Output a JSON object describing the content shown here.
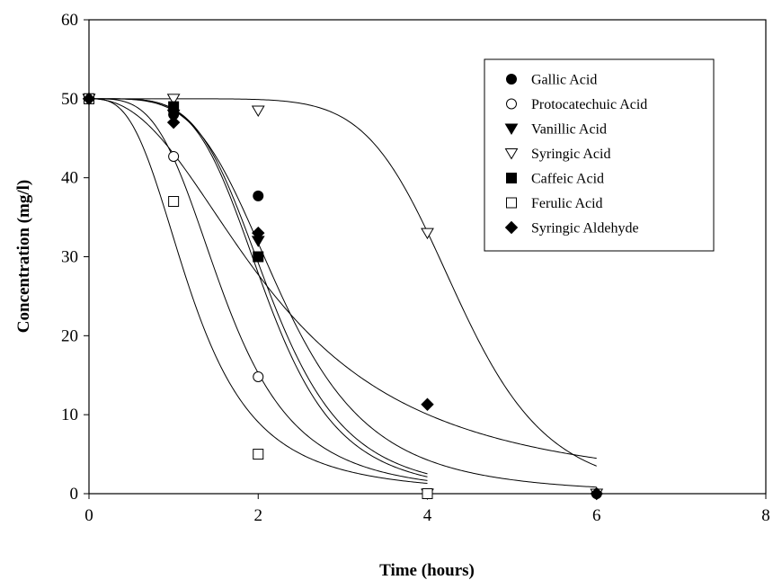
{
  "chart_data": {
    "type": "scatter",
    "title": "",
    "xlabel": "Time (hours)",
    "ylabel": "Concentration (mg/l)",
    "xlim": [
      0,
      8
    ],
    "ylim": [
      0,
      60
    ],
    "xticks": [
      "0",
      "2",
      "4",
      "6",
      "8"
    ],
    "yticks": [
      "0",
      "10",
      "20",
      "30",
      "40",
      "50",
      "60"
    ],
    "grid": false,
    "legend_position": "top-right",
    "fitted_curves": true,
    "series": [
      {
        "name": "Gallic Acid",
        "marker": "filled-circle",
        "points": [
          [
            0,
            50
          ],
          [
            1,
            48
          ],
          [
            2,
            37.7
          ],
          [
            4,
            0
          ],
          [
            6,
            0
          ]
        ],
        "fit": {
          "x0": 2.28,
          "k": 1.85
        }
      },
      {
        "name": "Protocatechuic Acid",
        "marker": "open-circle",
        "points": [
          [
            0,
            50
          ],
          [
            1,
            42.7
          ],
          [
            2,
            14.8
          ],
          [
            4,
            0
          ]
        ],
        "fit": {
          "x0": 1.6,
          "k": 2.3
        }
      },
      {
        "name": "Vanillic Acid",
        "marker": "filled-triangle-down",
        "points": [
          [
            0,
            50
          ],
          [
            1,
            48
          ],
          [
            2,
            32
          ],
          [
            4,
            0
          ]
        ],
        "fit": {
          "x0": 2.15,
          "k": 2.2
        }
      },
      {
        "name": "Syringic Acid",
        "marker": "open-triangle-down",
        "points": [
          [
            0,
            50
          ],
          [
            1,
            50
          ],
          [
            2,
            48.5
          ],
          [
            4,
            33
          ],
          [
            6,
            0
          ]
        ],
        "fit": {
          "x0": 4.35,
          "k": 1.85
        }
      },
      {
        "name": "Caffeic Acid",
        "marker": "filled-square",
        "points": [
          [
            0,
            50
          ],
          [
            1,
            49
          ],
          [
            2,
            30
          ],
          [
            4,
            0
          ]
        ],
        "fit": {
          "x0": 2.1,
          "k": 2.3
        }
      },
      {
        "name": "Ferulic Acid",
        "marker": "open-square",
        "points": [
          [
            0,
            50
          ],
          [
            1,
            37
          ],
          [
            2,
            5
          ],
          [
            4,
            0
          ]
        ],
        "fit": {
          "x0": 1.22,
          "k": 2.5
        }
      },
      {
        "name": "Syringic Aldehyde",
        "marker": "filled-diamond",
        "points": [
          [
            0,
            50
          ],
          [
            1,
            47
          ],
          [
            2,
            33
          ],
          [
            4,
            11.3
          ],
          [
            6,
            0
          ]
        ],
        "fit": {
          "x0": 2.2,
          "k": 1.05
        }
      }
    ]
  }
}
